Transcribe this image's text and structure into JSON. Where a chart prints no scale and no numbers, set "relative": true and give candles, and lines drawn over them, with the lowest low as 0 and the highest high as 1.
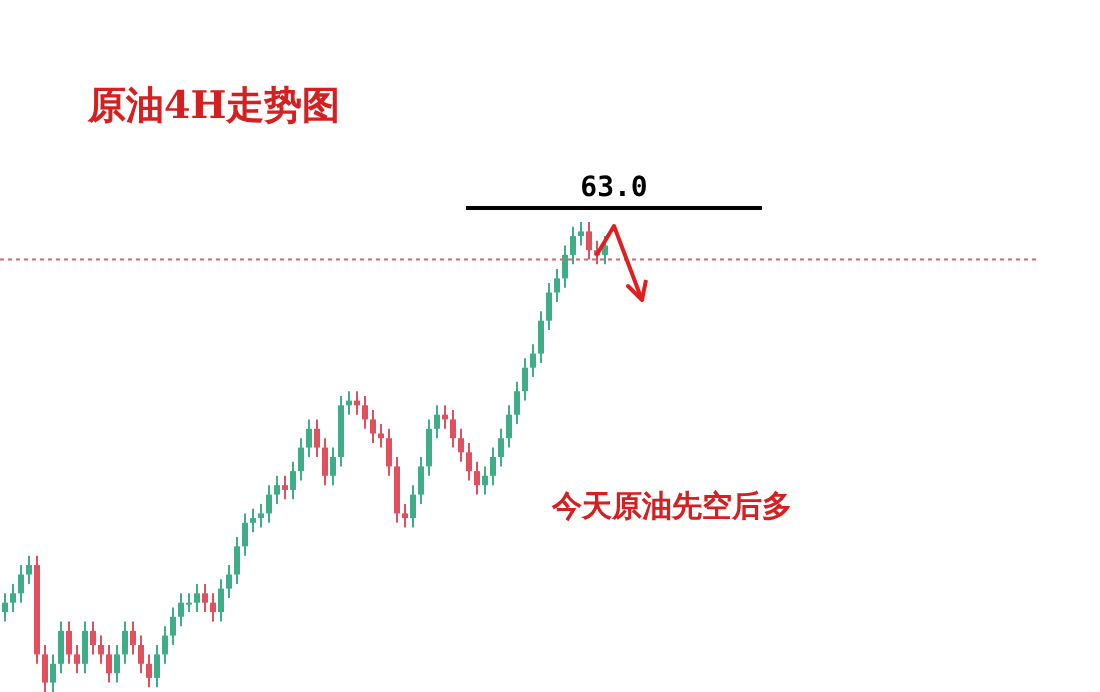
{
  "chart_data": {
    "type": "candlestick",
    "title": "原油4H走势图",
    "relative": true,
    "tick_labels": false,
    "grid": false,
    "legend": false,
    "annotations": [
      "今天原油先空后多",
      "63.0"
    ],
    "ref_lines": [
      {
        "axis": "y",
        "value": 0.92,
        "color": "#e06070",
        "line_style": "dotted"
      }
    ],
    "categories": [
      null,
      null,
      null,
      null,
      null,
      null,
      null,
      null,
      null,
      null,
      null,
      null,
      null,
      null,
      null,
      null,
      null,
      null,
      null,
      null,
      null,
      null,
      null,
      null,
      null,
      null,
      null,
      null,
      null,
      null,
      null,
      null,
      null,
      null,
      null,
      null,
      null,
      null,
      null,
      null,
      null,
      null,
      null,
      null,
      null,
      null,
      null,
      null,
      null,
      null,
      null,
      null,
      null,
      null,
      null,
      null,
      null,
      null,
      null,
      null,
      null,
      null,
      null,
      null,
      null,
      null,
      null,
      null,
      null,
      null,
      null,
      null,
      null,
      null,
      null,
      null
    ],
    "ohlc": [
      [
        0.17,
        0.21,
        0.15,
        0.19
      ],
      [
        0.19,
        0.23,
        0.17,
        0.21
      ],
      [
        0.21,
        0.27,
        0.19,
        0.25
      ],
      [
        0.25,
        0.29,
        0.23,
        0.27
      ],
      [
        0.27,
        0.29,
        0.06,
        0.08
      ],
      [
        0.08,
        0.1,
        0,
        0.02
      ],
      [
        0.02,
        0.08,
        0,
        0.06
      ],
      [
        0.06,
        0.15,
        0.04,
        0.13
      ],
      [
        0.13,
        0.15,
        0.06,
        0.08
      ],
      [
        0.08,
        0.1,
        0.04,
        0.06
      ],
      [
        0.06,
        0.15,
        0.04,
        0.13
      ],
      [
        0.13,
        0.15,
        0.08,
        0.1
      ],
      [
        0.1,
        0.12,
        0.06,
        0.08
      ],
      [
        0.08,
        0.1,
        0.02,
        0.04
      ],
      [
        0.04,
        0.1,
        0.02,
        0.08
      ],
      [
        0.08,
        0.15,
        0.06,
        0.13
      ],
      [
        0.13,
        0.15,
        0.08,
        0.1
      ],
      [
        0.1,
        0.12,
        0.04,
        0.06
      ],
      [
        0.06,
        0.08,
        0.01,
        0.03
      ],
      [
        0.03,
        0.1,
        0.01,
        0.08
      ],
      [
        0.08,
        0.14,
        0.06,
        0.12
      ],
      [
        0.12,
        0.18,
        0.1,
        0.16
      ],
      [
        0.16,
        0.21,
        0.14,
        0.19
      ],
      [
        0.19,
        0.21,
        0.17,
        0.19
      ],
      [
        0.19,
        0.23,
        0.17,
        0.21
      ],
      [
        0.21,
        0.23,
        0.17,
        0.19
      ],
      [
        0.19,
        0.21,
        0.15,
        0.17
      ],
      [
        0.17,
        0.24,
        0.15,
        0.22
      ],
      [
        0.22,
        0.27,
        0.2,
        0.25
      ],
      [
        0.25,
        0.33,
        0.23,
        0.31
      ],
      [
        0.31,
        0.38,
        0.29,
        0.36
      ],
      [
        0.36,
        0.39,
        0.34,
        0.37
      ],
      [
        0.37,
        0.4,
        0.35,
        0.38
      ],
      [
        0.38,
        0.44,
        0.36,
        0.42
      ],
      [
        0.42,
        0.46,
        0.4,
        0.44
      ],
      [
        0.44,
        0.46,
        0.41,
        0.43
      ],
      [
        0.43,
        0.49,
        0.41,
        0.47
      ],
      [
        0.47,
        0.54,
        0.45,
        0.52
      ],
      [
        0.52,
        0.58,
        0.5,
        0.56
      ],
      [
        0.56,
        0.58,
        0.5,
        0.52
      ],
      [
        0.52,
        0.54,
        0.44,
        0.46
      ],
      [
        0.46,
        0.52,
        0.44,
        0.5
      ],
      [
        0.5,
        0.63,
        0.48,
        0.61
      ],
      [
        0.61,
        0.64,
        0.59,
        0.62
      ],
      [
        0.62,
        0.64,
        0.59,
        0.61
      ],
      [
        0.61,
        0.63,
        0.56,
        0.58
      ],
      [
        0.58,
        0.6,
        0.53,
        0.55
      ],
      [
        0.55,
        0.57,
        0.52,
        0.54
      ],
      [
        0.54,
        0.56,
        0.46,
        0.48
      ],
      [
        0.48,
        0.5,
        0.36,
        0.38
      ],
      [
        0.38,
        0.4,
        0.35,
        0.37
      ],
      [
        0.37,
        0.44,
        0.35,
        0.42
      ],
      [
        0.42,
        0.5,
        0.4,
        0.48
      ],
      [
        0.48,
        0.58,
        0.46,
        0.56
      ],
      [
        0.56,
        0.61,
        0.54,
        0.59
      ],
      [
        0.59,
        0.61,
        0.56,
        0.58
      ],
      [
        0.58,
        0.6,
        0.52,
        0.54
      ],
      [
        0.54,
        0.56,
        0.49,
        0.51
      ],
      [
        0.51,
        0.53,
        0.45,
        0.47
      ],
      [
        0.47,
        0.49,
        0.42,
        0.44
      ],
      [
        0.44,
        0.48,
        0.42,
        0.46
      ],
      [
        0.46,
        0.52,
        0.44,
        0.5
      ],
      [
        0.5,
        0.56,
        0.48,
        0.54
      ],
      [
        0.54,
        0.61,
        0.52,
        0.59
      ],
      [
        0.59,
        0.66,
        0.57,
        0.64
      ],
      [
        0.64,
        0.71,
        0.62,
        0.69
      ],
      [
        0.69,
        0.74,
        0.67,
        0.72
      ],
      [
        0.72,
        0.81,
        0.7,
        0.79
      ],
      [
        0.79,
        0.87,
        0.77,
        0.85
      ],
      [
        0.85,
        0.9,
        0.83,
        0.88
      ],
      [
        0.88,
        0.95,
        0.86,
        0.93
      ],
      [
        0.93,
        0.99,
        0.91,
        0.97
      ],
      [
        0.97,
        1.0,
        0.95,
        0.98
      ],
      [
        0.98,
        1.0,
        0.92,
        0.94
      ],
      [
        0.94,
        0.96,
        0.91,
        0.93
      ],
      [
        0.93,
        0.97,
        0.91,
        0.95
      ]
    ]
  }
}
